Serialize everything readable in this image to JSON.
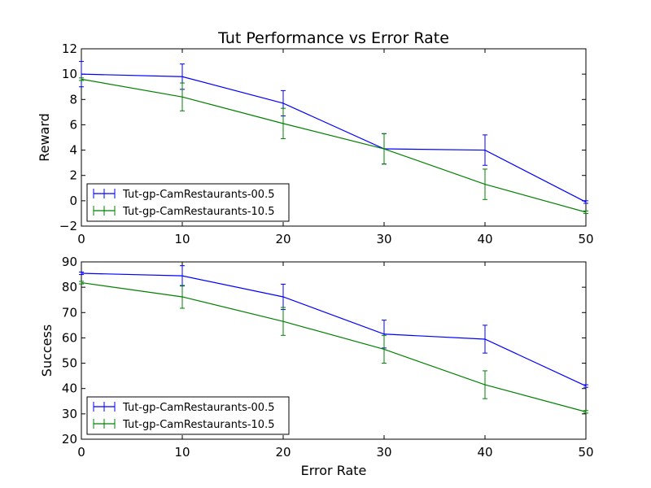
{
  "chart_data": [
    {
      "type": "line",
      "title": "Tut Performance vs Error Rate",
      "xlabel": "",
      "ylabel": "Reward",
      "xlim": [
        0,
        50
      ],
      "ylim": [
        -2,
        12
      ],
      "xticks": [
        "0",
        "10",
        "20",
        "30",
        "40",
        "50"
      ],
      "yticks": [
        "−2",
        "0",
        "2",
        "4",
        "6",
        "8",
        "10",
        "12"
      ],
      "x": [
        0,
        10,
        20,
        30,
        40,
        50
      ],
      "legend_position": "lower-left",
      "grid": false,
      "series": [
        {
          "name": "Tut-gp-CamRestaurants-00.5",
          "color": "#0000ff",
          "values": [
            10.0,
            9.8,
            7.7,
            4.1,
            4.0,
            -0.1
          ],
          "errors": [
            1.0,
            1.0,
            1.0,
            1.2,
            1.2,
            0.1
          ]
        },
        {
          "name": "Tut-gp-CamRestaurants-10.5",
          "color": "#008000",
          "values": [
            9.6,
            8.2,
            6.1,
            4.1,
            1.3,
            -0.9
          ],
          "errors": [
            0.1,
            1.1,
            1.2,
            1.2,
            1.2,
            0.1
          ]
        }
      ]
    },
    {
      "type": "line",
      "title": "",
      "xlabel": "Error Rate",
      "ylabel": "Success",
      "xlim": [
        0,
        50
      ],
      "ylim": [
        20,
        90
      ],
      "xticks": [
        "0",
        "10",
        "20",
        "30",
        "40",
        "50"
      ],
      "yticks": [
        "20",
        "30",
        "40",
        "50",
        "60",
        "70",
        "80",
        "90"
      ],
      "x": [
        0,
        10,
        20,
        30,
        40,
        50
      ],
      "legend_position": "lower-left",
      "grid": false,
      "series": [
        {
          "name": "Tut-gp-CamRestaurants-00.5",
          "color": "#0000ff",
          "values": [
            85.5,
            84.5,
            76.2,
            61.5,
            59.5,
            41.0
          ],
          "errors": [
            0.5,
            4.0,
            5.0,
            5.5,
            5.5,
            0.5
          ]
        },
        {
          "name": "Tut-gp-CamRestaurants-10.5",
          "color": "#008000",
          "values": [
            81.8,
            76.2,
            66.5,
            55.5,
            41.5,
            30.8
          ],
          "errors": [
            0.5,
            4.5,
            5.5,
            5.5,
            5.5,
            0.5
          ]
        }
      ]
    }
  ]
}
